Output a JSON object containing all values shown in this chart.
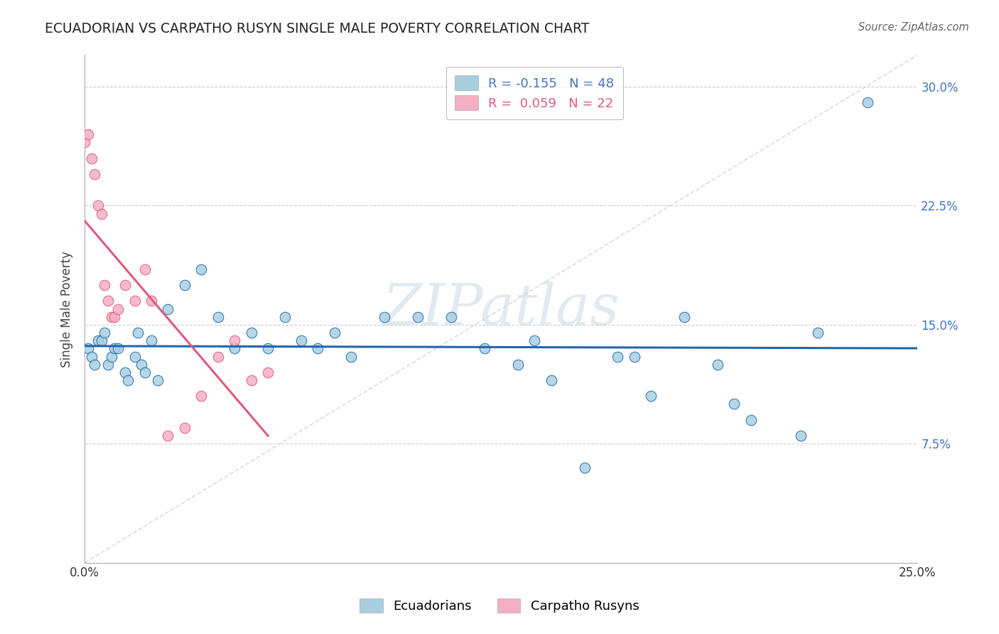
{
  "title": "ECUADORIAN VS CARPATHO RUSYN SINGLE MALE POVERTY CORRELATION CHART",
  "source": "Source: ZipAtlas.com",
  "ylabel": "Single Male Poverty",
  "xlim": [
    0.0,
    0.25
  ],
  "ylim": [
    0.0,
    0.32
  ],
  "x_ticks": [
    0.0,
    0.05,
    0.1,
    0.15,
    0.2,
    0.25
  ],
  "x_tick_labels": [
    "0.0%",
    "",
    "",
    "",
    "",
    "25.0%"
  ],
  "y_ticks": [
    0.0,
    0.075,
    0.15,
    0.225,
    0.3
  ],
  "y_tick_labels_right": [
    "",
    "7.5%",
    "15.0%",
    "22.5%",
    "30.0%"
  ],
  "ecuadorian_color": "#a8cfe0",
  "carpatho_color": "#f4afc4",
  "ecuadorian_line_color": "#2166ac",
  "carpatho_line_color": "#e05a7a",
  "background": "#ffffff",
  "grid_color": "#cccccc",
  "tick_label_color": "#4472c4",
  "ecuadorian_x": [
    0.001,
    0.002,
    0.003,
    0.004,
    0.005,
    0.006,
    0.007,
    0.008,
    0.009,
    0.01,
    0.012,
    0.013,
    0.015,
    0.016,
    0.017,
    0.018,
    0.02,
    0.022,
    0.025,
    0.03,
    0.035,
    0.04,
    0.045,
    0.05,
    0.055,
    0.06,
    0.065,
    0.07,
    0.075,
    0.08,
    0.09,
    0.1,
    0.11,
    0.12,
    0.13,
    0.135,
    0.14,
    0.15,
    0.16,
    0.165,
    0.17,
    0.18,
    0.19,
    0.195,
    0.2,
    0.215,
    0.22,
    0.235
  ],
  "ecuadorian_y": [
    0.135,
    0.13,
    0.125,
    0.14,
    0.14,
    0.145,
    0.125,
    0.13,
    0.135,
    0.135,
    0.12,
    0.115,
    0.13,
    0.145,
    0.125,
    0.12,
    0.14,
    0.115,
    0.16,
    0.175,
    0.185,
    0.155,
    0.135,
    0.145,
    0.135,
    0.155,
    0.14,
    0.135,
    0.145,
    0.13,
    0.155,
    0.155,
    0.155,
    0.135,
    0.125,
    0.14,
    0.115,
    0.06,
    0.13,
    0.13,
    0.105,
    0.155,
    0.125,
    0.1,
    0.09,
    0.08,
    0.145,
    0.29
  ],
  "carpatho_x": [
    0.0,
    0.001,
    0.002,
    0.003,
    0.004,
    0.005,
    0.006,
    0.007,
    0.008,
    0.009,
    0.01,
    0.012,
    0.015,
    0.018,
    0.02,
    0.025,
    0.03,
    0.035,
    0.04,
    0.045,
    0.05,
    0.055
  ],
  "carpatho_y": [
    0.265,
    0.27,
    0.255,
    0.245,
    0.225,
    0.22,
    0.175,
    0.165,
    0.155,
    0.155,
    0.16,
    0.175,
    0.165,
    0.185,
    0.165,
    0.08,
    0.085,
    0.105,
    0.13,
    0.14,
    0.115,
    0.12
  ]
}
